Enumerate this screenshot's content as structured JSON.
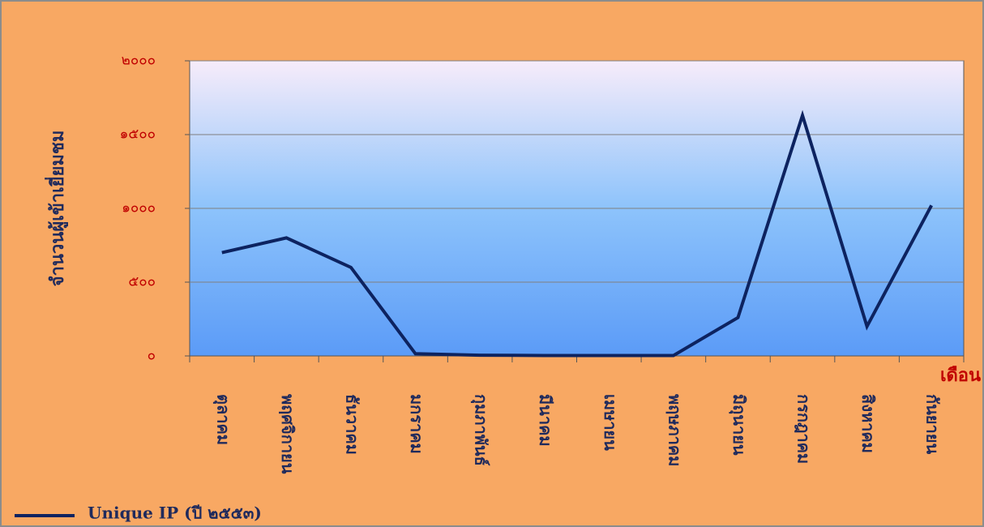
{
  "chart_data": {
    "type": "line",
    "y_label": "จำนวนผู้เข้าเยี่ยมชม",
    "x_label": "เดือน",
    "categories": [
      "ตุลาคม",
      "พฤศจิกายน",
      "ธันวาคม",
      "มกราคม",
      "กุมภาพันธ์",
      "มีนาคม",
      "เมษายน",
      "พฤษภาคม",
      "มิถุนายน",
      "กรกฎาคม",
      "สิงหาคม",
      "กันยายน"
    ],
    "series": [
      {
        "name": "Unique IP (ปี ๒๕๕๓)",
        "color": "#0d2360",
        "values": [
          700,
          800,
          600,
          15,
          5,
          3,
          3,
          3,
          260,
          1630,
          200,
          1020
        ]
      }
    ],
    "ylim": [
      0,
      2000
    ],
    "yticks": [
      {
        "value": 0,
        "label": "๐"
      },
      {
        "value": 500,
        "label": "๕๐๐"
      },
      {
        "value": 1000,
        "label": "๑๐๐๐"
      },
      {
        "value": 1500,
        "label": "๑๕๐๐"
      },
      {
        "value": 2000,
        "label": "๒๐๐๐"
      }
    ],
    "grid": true,
    "legend": "bottom-left"
  }
}
